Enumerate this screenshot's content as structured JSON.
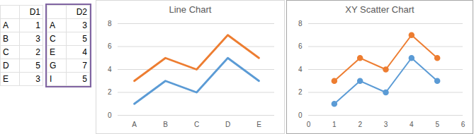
{
  "tables": [
    {
      "header": [
        "",
        "D1"
      ],
      "rows": [
        [
          "A",
          1
        ],
        [
          "B",
          3
        ],
        [
          "C",
          2
        ],
        [
          "D",
          5
        ],
        [
          "E",
          3
        ]
      ]
    },
    {
      "header": [
        "",
        "D2"
      ],
      "rows": [
        [
          "A",
          3
        ],
        [
          "C",
          5
        ],
        [
          "E",
          4
        ],
        [
          "G",
          7
        ],
        [
          "I",
          5
        ]
      ]
    }
  ],
  "chart_data": [
    {
      "type": "line",
      "title": "Line Chart",
      "categories": [
        "A",
        "B",
        "C",
        "D",
        "E"
      ],
      "series": [
        {
          "color": "#5b9bd5",
          "marker": "none",
          "values": [
            1,
            3,
            2,
            5,
            3
          ]
        },
        {
          "color": "#ed7d31",
          "marker": "none",
          "values": [
            3,
            5,
            4,
            7,
            5
          ]
        }
      ],
      "ylim": [
        0,
        8
      ],
      "yticks": [
        0,
        2,
        4,
        6,
        8
      ],
      "grid": true
    },
    {
      "type": "scatter",
      "title": "XY Scatter Chart",
      "x": [
        1,
        2,
        3,
        4,
        5
      ],
      "series": [
        {
          "color": "#5b9bd5",
          "marker": "circle",
          "values": [
            1,
            3,
            2,
            5,
            3
          ]
        },
        {
          "color": "#ed7d31",
          "marker": "circle",
          "values": [
            3,
            5,
            4,
            7,
            5
          ]
        }
      ],
      "xlim": [
        0,
        6
      ],
      "xticks": [
        0,
        1,
        2,
        3,
        4,
        5,
        6
      ],
      "ylim": [
        0,
        8
      ],
      "yticks": [
        0,
        2,
        4,
        6,
        8
      ],
      "grid": true
    }
  ]
}
